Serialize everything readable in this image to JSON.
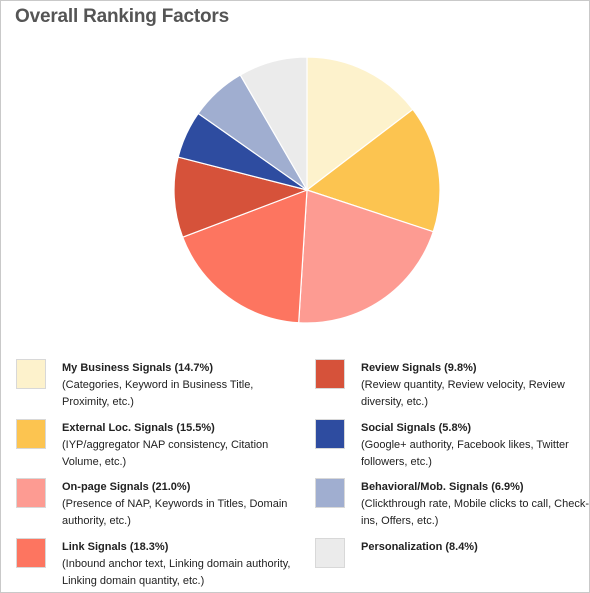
{
  "chart_data": {
    "type": "pie",
    "title": "Overall Ranking Factors",
    "start": "12 o'clock, clockwise",
    "slices": [
      {
        "label": "My Business Signals",
        "value": 14.7,
        "title": "My Business Signals (14.7%)",
        "desc": "(Categories, Keyword in Business Title, Proximity, etc.)",
        "color": "#fdf2cc"
      },
      {
        "label": "External Loc. Signals",
        "value": 15.5,
        "title": "External Loc. Signals (15.5%)",
        "desc": "(IYP/aggregator NAP consistency, Citation Volume, etc.)",
        "color": "#fcc450"
      },
      {
        "label": "On-page Signals",
        "value": 21.0,
        "title": "On-page Signals (21.0%)",
        "desc": "(Presence of NAP, Keywords in Titles, Domain authority, etc.)",
        "color": "#fd9b92"
      },
      {
        "label": "Link Signals",
        "value": 18.3,
        "title": "Link Signals (18.3%)",
        "desc": "(Inbound anchor text, Linking domain authority, Linking domain quantity, etc.)",
        "color": "#fd7560"
      },
      {
        "label": "Review Signals",
        "value": 9.8,
        "title": "Review Signals (9.8%)",
        "desc": "(Review quantity, Review velocity, Review diversity, etc.)",
        "color": "#d6523a"
      },
      {
        "label": "Social Signals",
        "value": 5.8,
        "title": "Social Signals (5.8%)",
        "desc": "(Google+ authority, Facebook likes, Twitter followers, etc.)",
        "color": "#2e4ca0"
      },
      {
        "label": "Behavioral/Mob. Signals",
        "value": 6.9,
        "title": "Behavioral/Mob. Signals (6.9%)",
        "desc": "(Clickthrough rate, Mobile clicks to call, Check-ins, Offers, etc.)",
        "color": "#a0aed0"
      },
      {
        "label": "Personalization",
        "value": 8.4,
        "title": "Personalization (8.4%)",
        "desc": "",
        "color": "#ebebeb"
      }
    ],
    "legend": "below, two columns"
  }
}
